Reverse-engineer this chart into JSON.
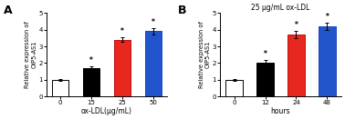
{
  "panel_A": {
    "label": "A",
    "title": "",
    "categories": [
      "0",
      "15",
      "25",
      "50"
    ],
    "values": [
      1.0,
      1.7,
      3.4,
      3.9
    ],
    "errors": [
      0.07,
      0.12,
      0.15,
      0.18
    ],
    "bar_colors": [
      "white",
      "black",
      "#e8271e",
      "#2255cc"
    ],
    "bar_edge_colors": [
      "black",
      "black",
      "#c01010",
      "#1a44bb"
    ],
    "xlabel": "ox-LDL(μg/mL)",
    "ylabel": "Relative expression of\nOIP5-AS1",
    "ylim": [
      0,
      5
    ],
    "yticks": [
      0,
      1,
      2,
      3,
      4,
      5
    ],
    "star_indices": [
      1,
      2,
      3
    ],
    "star_color": "black"
  },
  "panel_B": {
    "label": "B",
    "title": "25 μg/mL ox-LDL",
    "categories": [
      "0",
      "12",
      "24",
      "48"
    ],
    "values": [
      1.0,
      2.0,
      3.7,
      4.2
    ],
    "errors": [
      0.07,
      0.18,
      0.2,
      0.22
    ],
    "bar_colors": [
      "white",
      "black",
      "#e8271e",
      "#2255cc"
    ],
    "bar_edge_colors": [
      "black",
      "black",
      "#c01010",
      "#1a44bb"
    ],
    "xlabel": "hours",
    "ylabel": "Relative expression of\nOIP5-AS1",
    "ylim": [
      0,
      5
    ],
    "yticks": [
      0,
      1,
      2,
      3,
      4,
      5
    ],
    "star_indices": [
      1,
      2,
      3
    ],
    "star_color": "black"
  }
}
